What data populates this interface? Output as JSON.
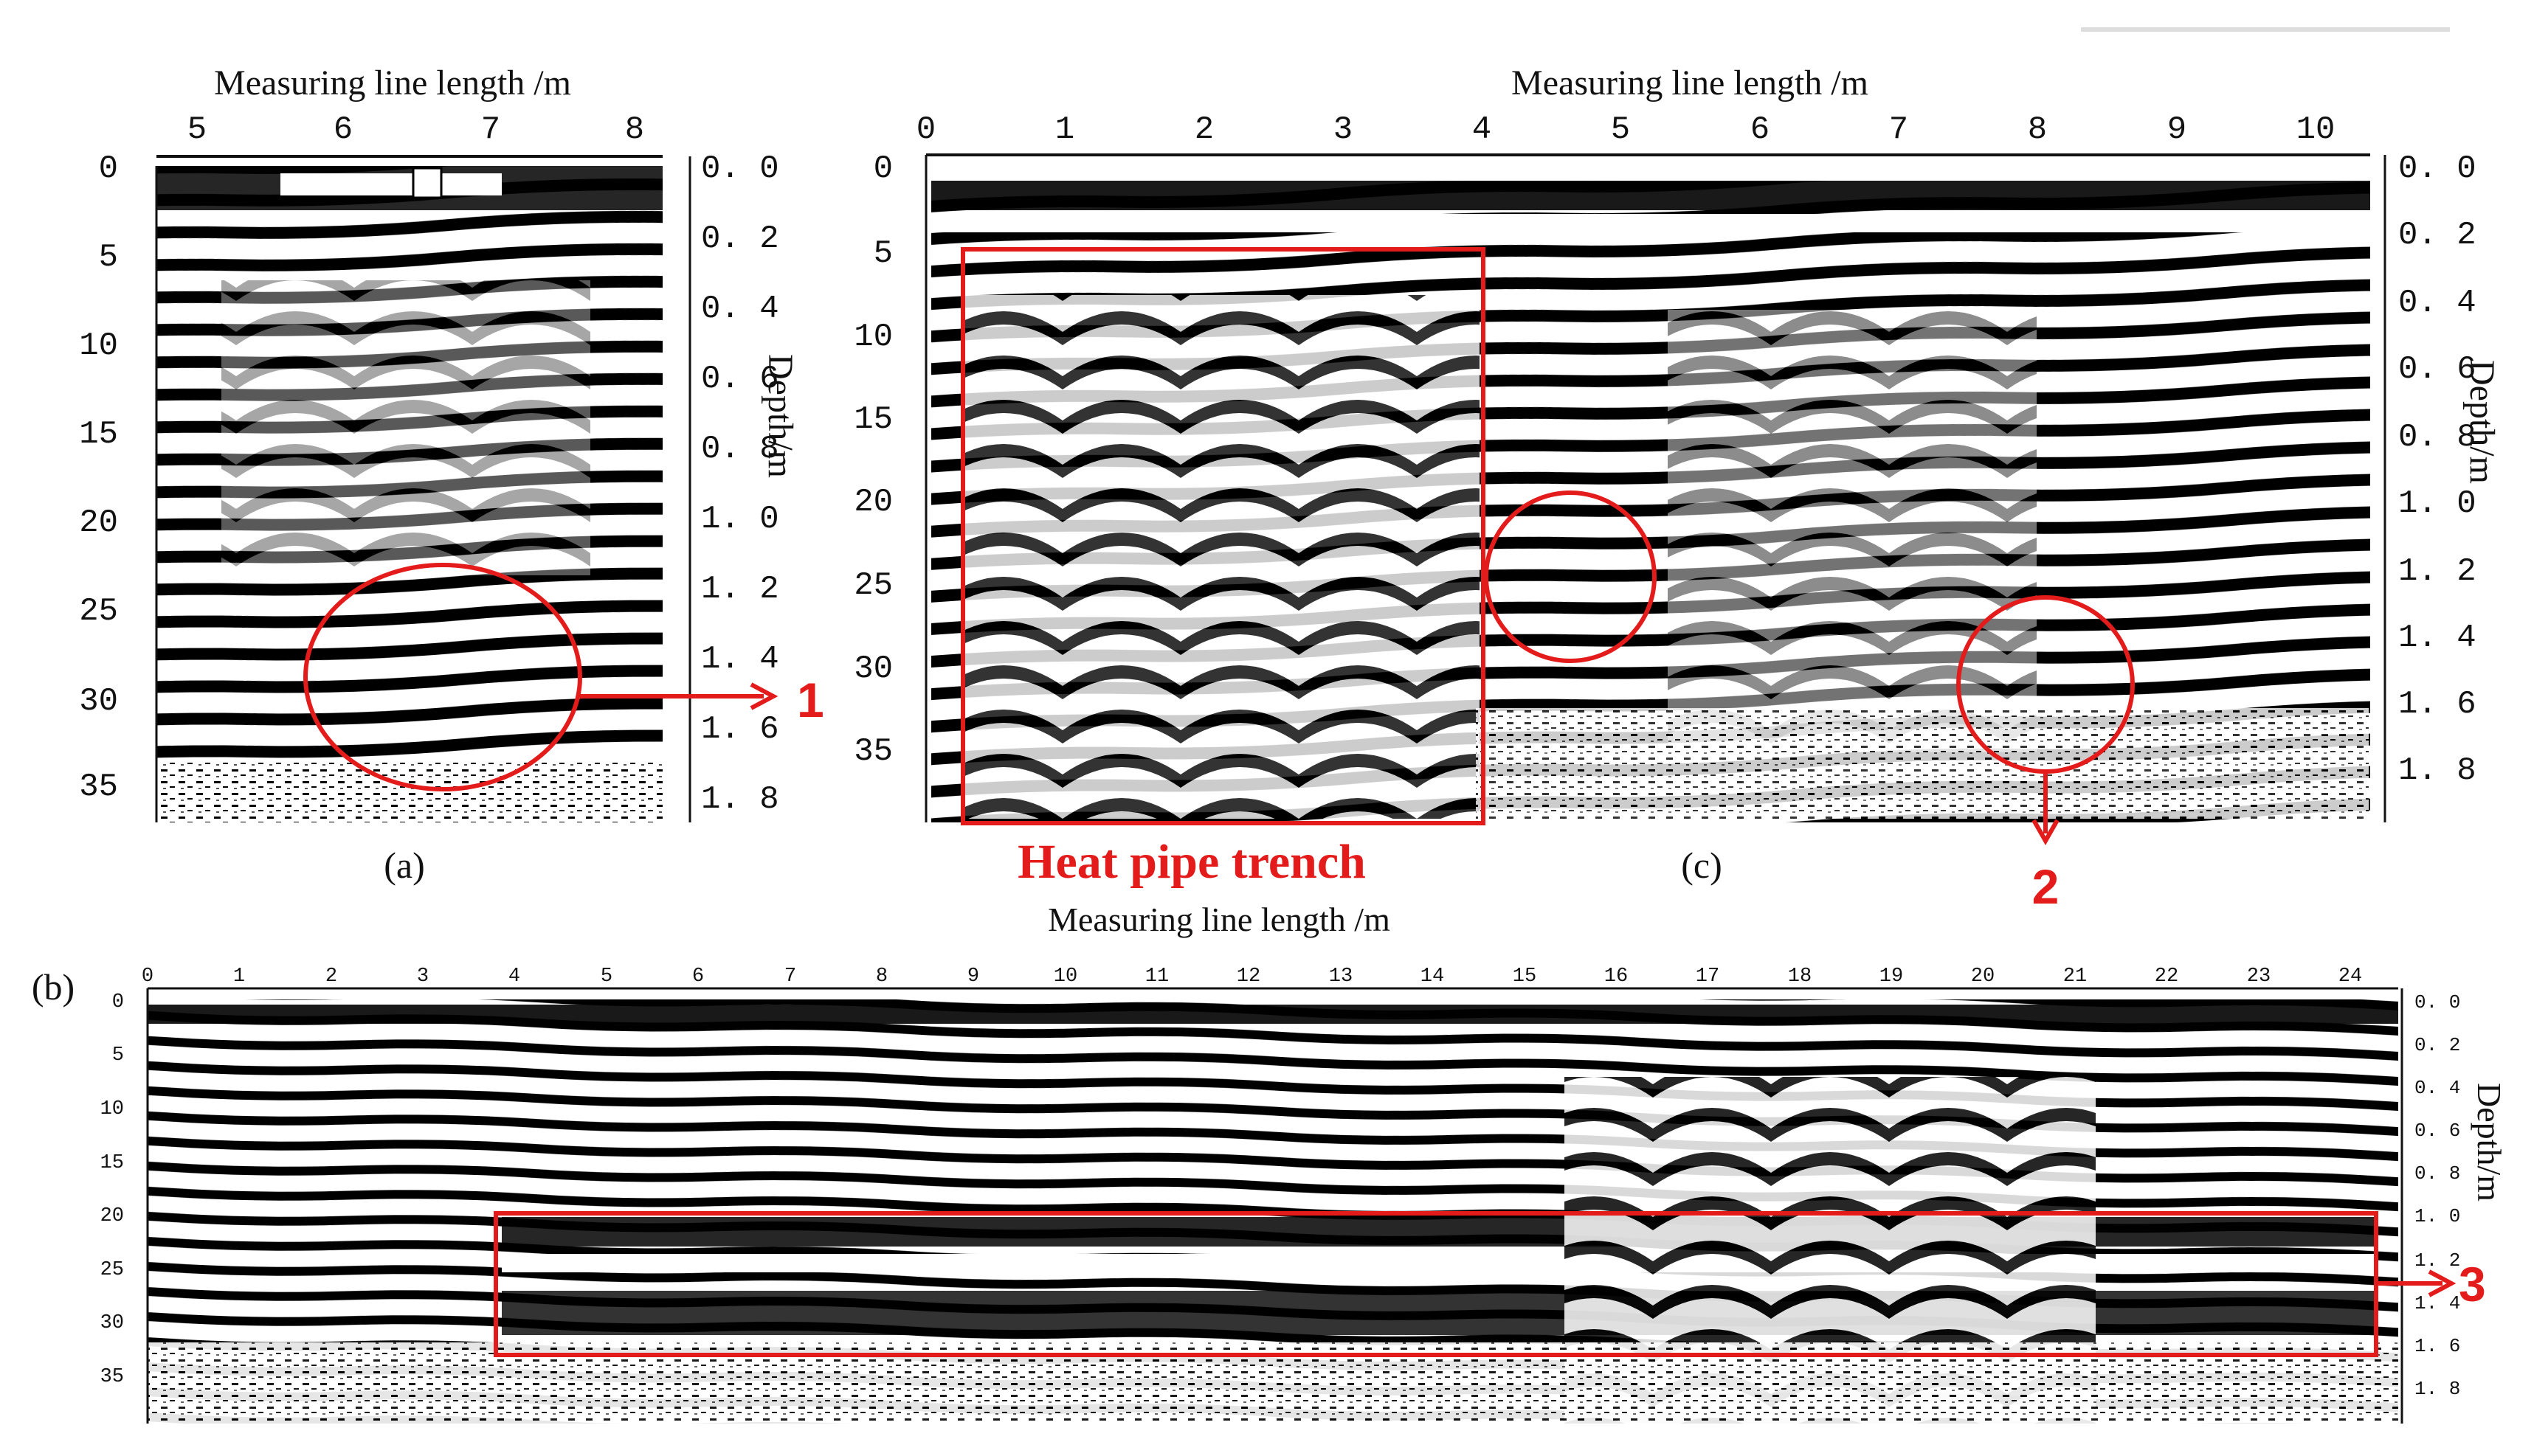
{
  "panels": {
    "a": {
      "label": "(a)",
      "x_axis_title": "Measuring line length /m",
      "x_ticks": [
        "5",
        "6",
        "7",
        "8"
      ],
      "left_ticks": [
        "0",
        "5",
        "10",
        "15",
        "20",
        "25",
        "30",
        "35"
      ],
      "depth_ticks": [
        "0. 0",
        "0. 2",
        "0. 4",
        "0. 6",
        "0. 8",
        "1. 0",
        "1. 2",
        "1. 4",
        "1. 6",
        "1. 8"
      ],
      "depth_title": "Depth/m",
      "marker": "1"
    },
    "b": {
      "label": "(b)",
      "x_axis_title": "Measuring line length /m",
      "x_ticks": [
        "0",
        "1",
        "2",
        "3",
        "4",
        "5",
        "6",
        "7",
        "8",
        "9",
        "10",
        "11",
        "12",
        "13",
        "14",
        "15",
        "16",
        "17",
        "18",
        "19",
        "20",
        "21",
        "22",
        "23",
        "24"
      ],
      "left_ticks": [
        "0",
        "5",
        "10",
        "15",
        "20",
        "25",
        "30",
        "35"
      ],
      "depth_ticks": [
        "0. 0",
        "0. 2",
        "0. 4",
        "0. 6",
        "0. 8",
        "1. 0",
        "1. 2",
        "1. 4",
        "1. 6",
        "1. 8"
      ],
      "depth_title": "Depth/m",
      "marker": "3"
    },
    "c": {
      "label": "(c)",
      "x_axis_title": "Measuring line length /m",
      "x_ticks": [
        "0",
        "1",
        "2",
        "3",
        "4",
        "5",
        "6",
        "7",
        "8",
        "9",
        "10"
      ],
      "left_ticks": [
        "0",
        "5",
        "10",
        "15",
        "20",
        "25",
        "30",
        "35"
      ],
      "depth_ticks": [
        "0. 0",
        "0. 2",
        "0. 4",
        "0. 6",
        "0. 8",
        "1. 0",
        "1. 2",
        "1. 4",
        "1. 6",
        "1. 8"
      ],
      "depth_title": "Depth/m",
      "marker": "2",
      "annotation": "Heat pipe trench"
    }
  },
  "colors": {
    "annotation": "#e31b1b",
    "trace_dark": "#000000",
    "trace_light": "#ffffff"
  }
}
